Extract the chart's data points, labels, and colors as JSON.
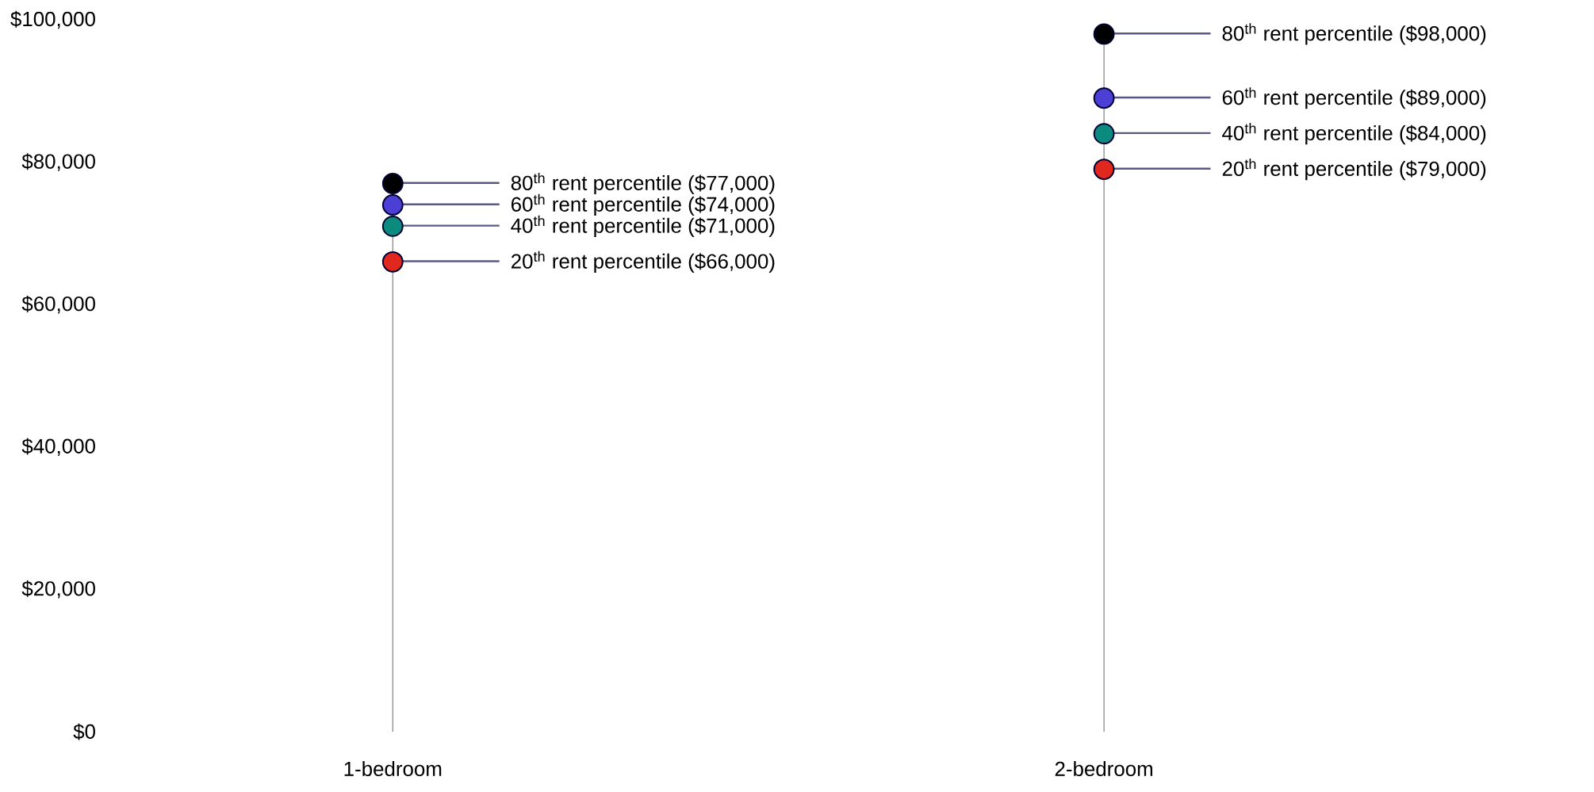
{
  "chart_data": {
    "type": "scatter",
    "categories": [
      "1-bedroom",
      "2-bedroom"
    ],
    "series": [
      {
        "color": "#e0281e",
        "values": [
          66000,
          79000
        ]
      },
      {
        "color": "#0b8a7e",
        "values": [
          71000,
          84000
        ]
      },
      {
        "color": "#4b3fd6",
        "values": [
          74000,
          89000
        ]
      },
      {
        "type": "lollipop",
        "color": "#000000",
        "values": [
          77000,
          98000
        ]
      }
    ],
    "marker": "circle",
    "ylim": [
      0,
      100000
    ],
    "yticks": [
      {
        "value": 0,
        "label": "$0"
      },
      {
        "value": 20000,
        "label": "$20,000"
      },
      {
        "value": 40000,
        "label": "$40,000"
      },
      {
        "value": 60000,
        "label": "$60,000"
      },
      {
        "value": 80000,
        "label": "$80,000"
      },
      {
        "value": 100000,
        "label": "$100,000"
      }
    ],
    "annotations": [
      {
        "text": "80$^{th}$ rent percentile ($77,000)",
        "x": "1-bedroom",
        "y": 77000
      },
      {
        "text": "60$^{th}$ rent percentile ($74,000)",
        "x": "1-bedroom",
        "y": 74000
      },
      {
        "text": "40$^{th}$ rent percentile ($71,000)",
        "x": "1-bedroom",
        "y": 71000
      },
      {
        "text": "20$^{th}$ rent percentile ($66,000)",
        "x": "1-bedroom",
        "y": 66000
      },
      {
        "text": "80$^{th}$ rent percentile ($98,000)",
        "x": "2-bedroom",
        "y": 98000
      },
      {
        "text": "60$^{th}$ rent percentile ($89,000)",
        "x": "2-bedroom",
        "y": 89000
      },
      {
        "text": "40$^{th}$ rent percentile ($84,000)",
        "x": "2-bedroom",
        "y": 84000
      },
      {
        "text": "20$^{th}$ rent percentile ($79,000)",
        "x": "2-bedroom",
        "y": 79000
      }
    ]
  }
}
